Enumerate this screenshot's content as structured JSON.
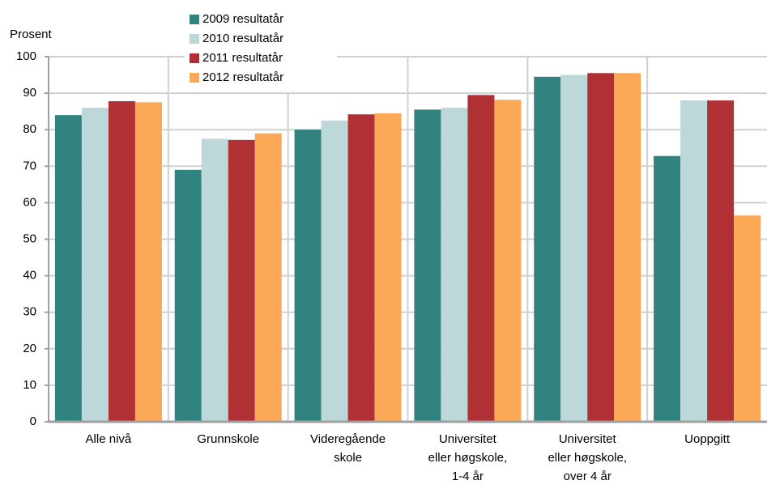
{
  "chart_data": {
    "type": "bar",
    "ylabel": "Prosent",
    "categories": [
      "Alle nivå",
      "Grunnskole",
      "Videregående skole",
      "Universitet eller høgskole, 1-4 år",
      "Universitet eller høgskole, over 4 år",
      "Uoppgitt"
    ],
    "series": [
      {
        "name": "2009 resultatår",
        "color": "#31837f",
        "values": [
          84,
          69,
          80,
          85.5,
          94.5,
          72.8
        ]
      },
      {
        "name": "2010 resultatår",
        "color": "#bcd8d8",
        "values": [
          86,
          77.5,
          82.5,
          86,
          95,
          88
        ]
      },
      {
        "name": "2011 resultatår",
        "color": "#b03033",
        "values": [
          87.8,
          77.2,
          84.2,
          89.5,
          95.5,
          88
        ]
      },
      {
        "name": "2012 resultatår",
        "color": "#fba957",
        "values": [
          87.5,
          79,
          84.5,
          88.2,
          95.5,
          56.5
        ]
      }
    ],
    "ylim": [
      0,
      100
    ],
    "yticks": [
      0,
      10,
      20,
      30,
      40,
      50,
      60,
      70,
      80,
      90,
      100
    ],
    "grid": true,
    "legend": "top"
  }
}
